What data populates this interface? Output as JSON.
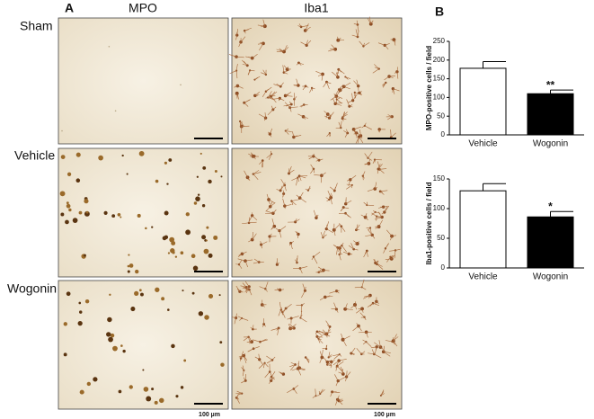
{
  "panel_labels": [
    "A",
    "B"
  ],
  "column_labels": [
    "MPO",
    "Iba1"
  ],
  "row_labels": [
    "Sham",
    "Vehicle",
    "Wogonin"
  ],
  "scale_bar_label": "100 µm",
  "chart_data": [
    {
      "type": "bar",
      "y_label": "MPO-positive cells / field",
      "categories": [
        "Vehicle",
        "Wogonin"
      ],
      "values": [
        178,
        110
      ],
      "errors": [
        18,
        10
      ],
      "significance": [
        null,
        "**"
      ],
      "colors": [
        "#ffffff",
        "#000000"
      ],
      "ylim": [
        0,
        250
      ],
      "yticks": [
        0,
        50,
        100,
        150,
        200,
        250
      ]
    },
    {
      "type": "bar",
      "y_label": "Iba1-positive cells / field",
      "categories": [
        "Vehicle",
        "Wogonin"
      ],
      "values": [
        130,
        86
      ],
      "errors": [
        12,
        9
      ],
      "significance": [
        null,
        "*"
      ],
      "colors": [
        "#ffffff",
        "#000000"
      ],
      "ylim": [
        0,
        150
      ],
      "yticks": [
        0,
        50,
        100,
        150
      ]
    }
  ]
}
